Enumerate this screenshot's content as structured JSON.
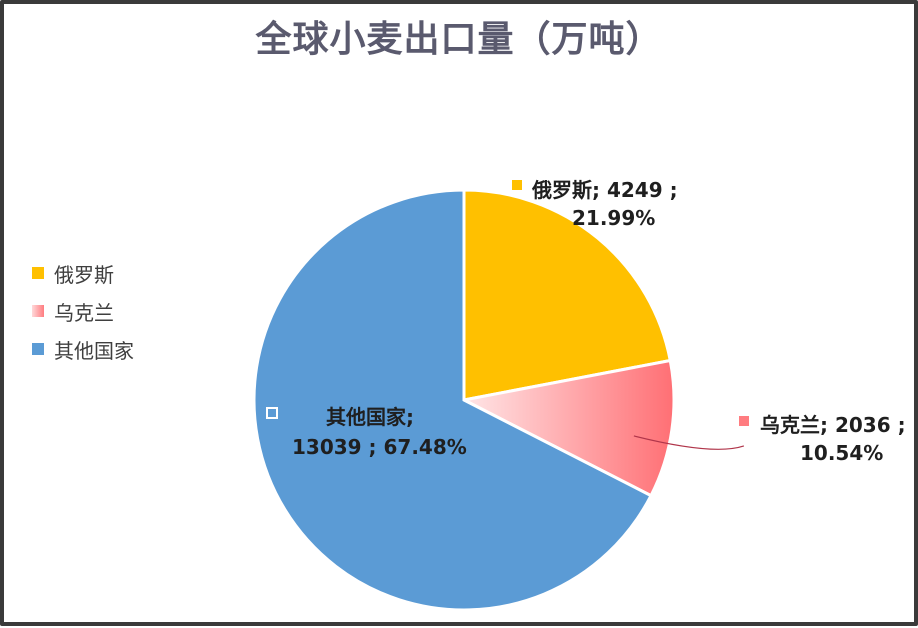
{
  "chart_data": {
    "type": "pie",
    "title": "全球小麦出口量（万吨）",
    "slices": [
      {
        "name": "俄罗斯",
        "value": 4249,
        "percent": "21.99%",
        "value_label": "4249",
        "color": "#ffc000"
      },
      {
        "name": "乌克兰",
        "value": 2036,
        "percent": "10.54%",
        "value_label": "2036",
        "color": "#ff7c80"
      },
      {
        "name": "其他国家",
        "value": 13039,
        "percent": "67.48%",
        "value_label": "13039",
        "color": "#5b9bd5"
      }
    ],
    "legend_position": "left",
    "data_labels": [
      {
        "line1": "俄罗斯; 4249 ;",
        "line2": "21.99%"
      },
      {
        "line1": "乌克兰; 2036 ;",
        "line2": "10.54%"
      },
      {
        "line1": "其他国家;",
        "line2": "13039 ; 67.48%"
      }
    ]
  }
}
